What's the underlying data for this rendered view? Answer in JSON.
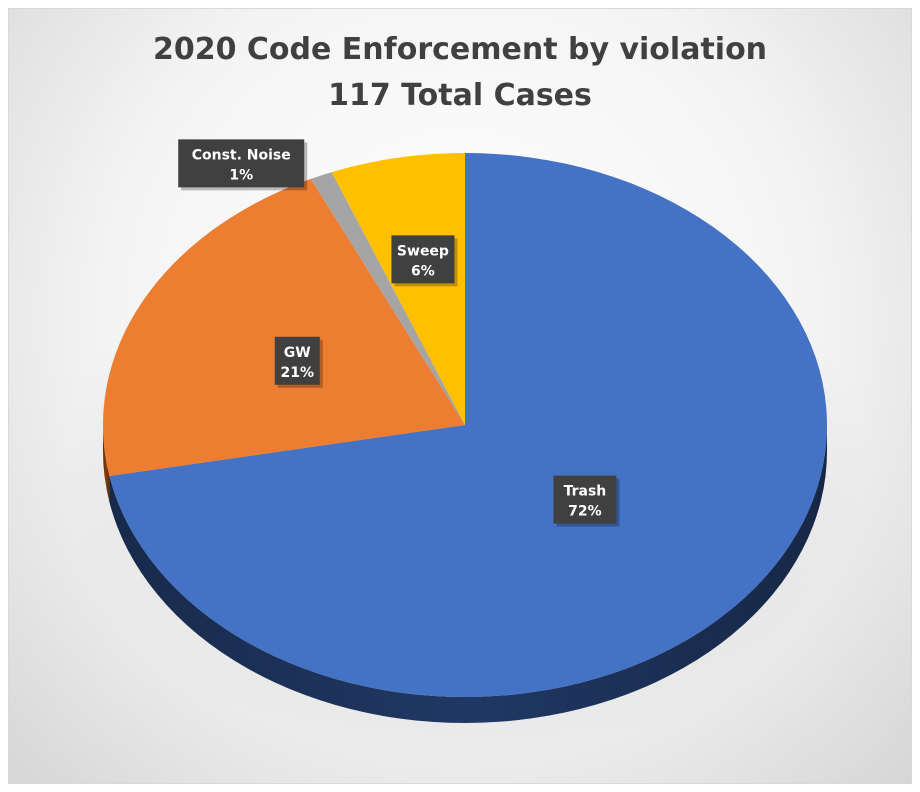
{
  "chart_data": {
    "type": "pie",
    "title": "2020 Code Enforcement by violation",
    "subtitle": "117 Total Cases",
    "categories": [
      "Trash",
      "GW",
      "Const. Noise",
      "Sweep"
    ],
    "values": [
      72,
      21,
      1,
      6
    ],
    "labels": [
      "72%",
      "21%",
      "1%",
      "6%"
    ],
    "colors": [
      "#4472C4",
      "#ED7D31",
      "#A5A5A5",
      "#FFC000"
    ],
    "side_colors": [
      "#203864",
      "#843C0C",
      "#595959",
      "#7F6000"
    ],
    "label_box_color": "#404040",
    "start_angle_deg": 0,
    "direction": "clockwise",
    "style": "3d"
  }
}
